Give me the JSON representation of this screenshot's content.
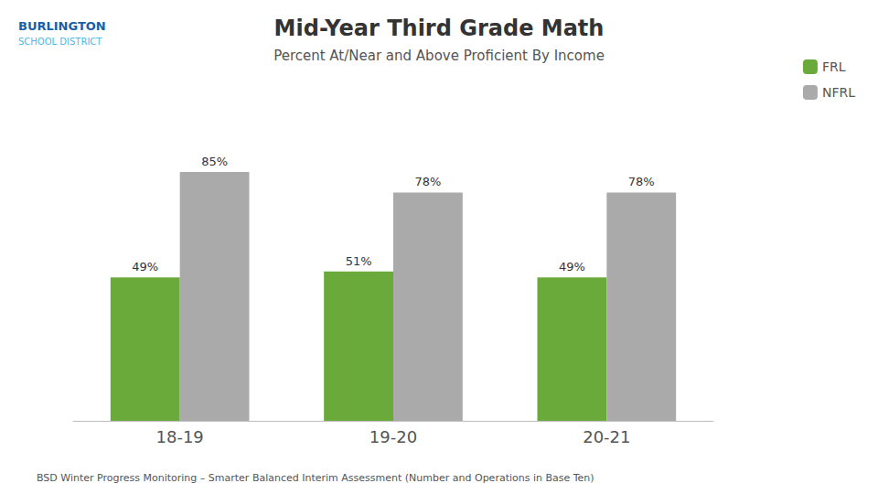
{
  "chart_data": {
    "type": "bar",
    "title": "Mid-Year Third Grade Math",
    "subtitle": "Percent At/Near and Above Proficient By Income",
    "categories": [
      "18-19",
      "19-20",
      "20-21"
    ],
    "series": [
      {
        "name": "FRL",
        "color": "#6aaa3a",
        "values": [
          49,
          51,
          49
        ],
        "value_labels": [
          "49%",
          "51%",
          "49%"
        ]
      },
      {
        "name": "NFRL",
        "color": "#aaaaaa",
        "values": [
          85,
          78,
          78
        ],
        "value_labels": [
          "85%",
          "78%",
          "78%"
        ]
      }
    ],
    "ylim": [
      0,
      100
    ],
    "data_labels": true,
    "tick_labels": "x",
    "grid": false,
    "legend": "upper right",
    "annotations": [
      "BURLINGTON",
      "SCHOOL DISTRICT",
      "BSD Winter Progress Monitoring – Smarter Balanced Interim Assessment (Number and Operations in Base Ten)"
    ]
  }
}
